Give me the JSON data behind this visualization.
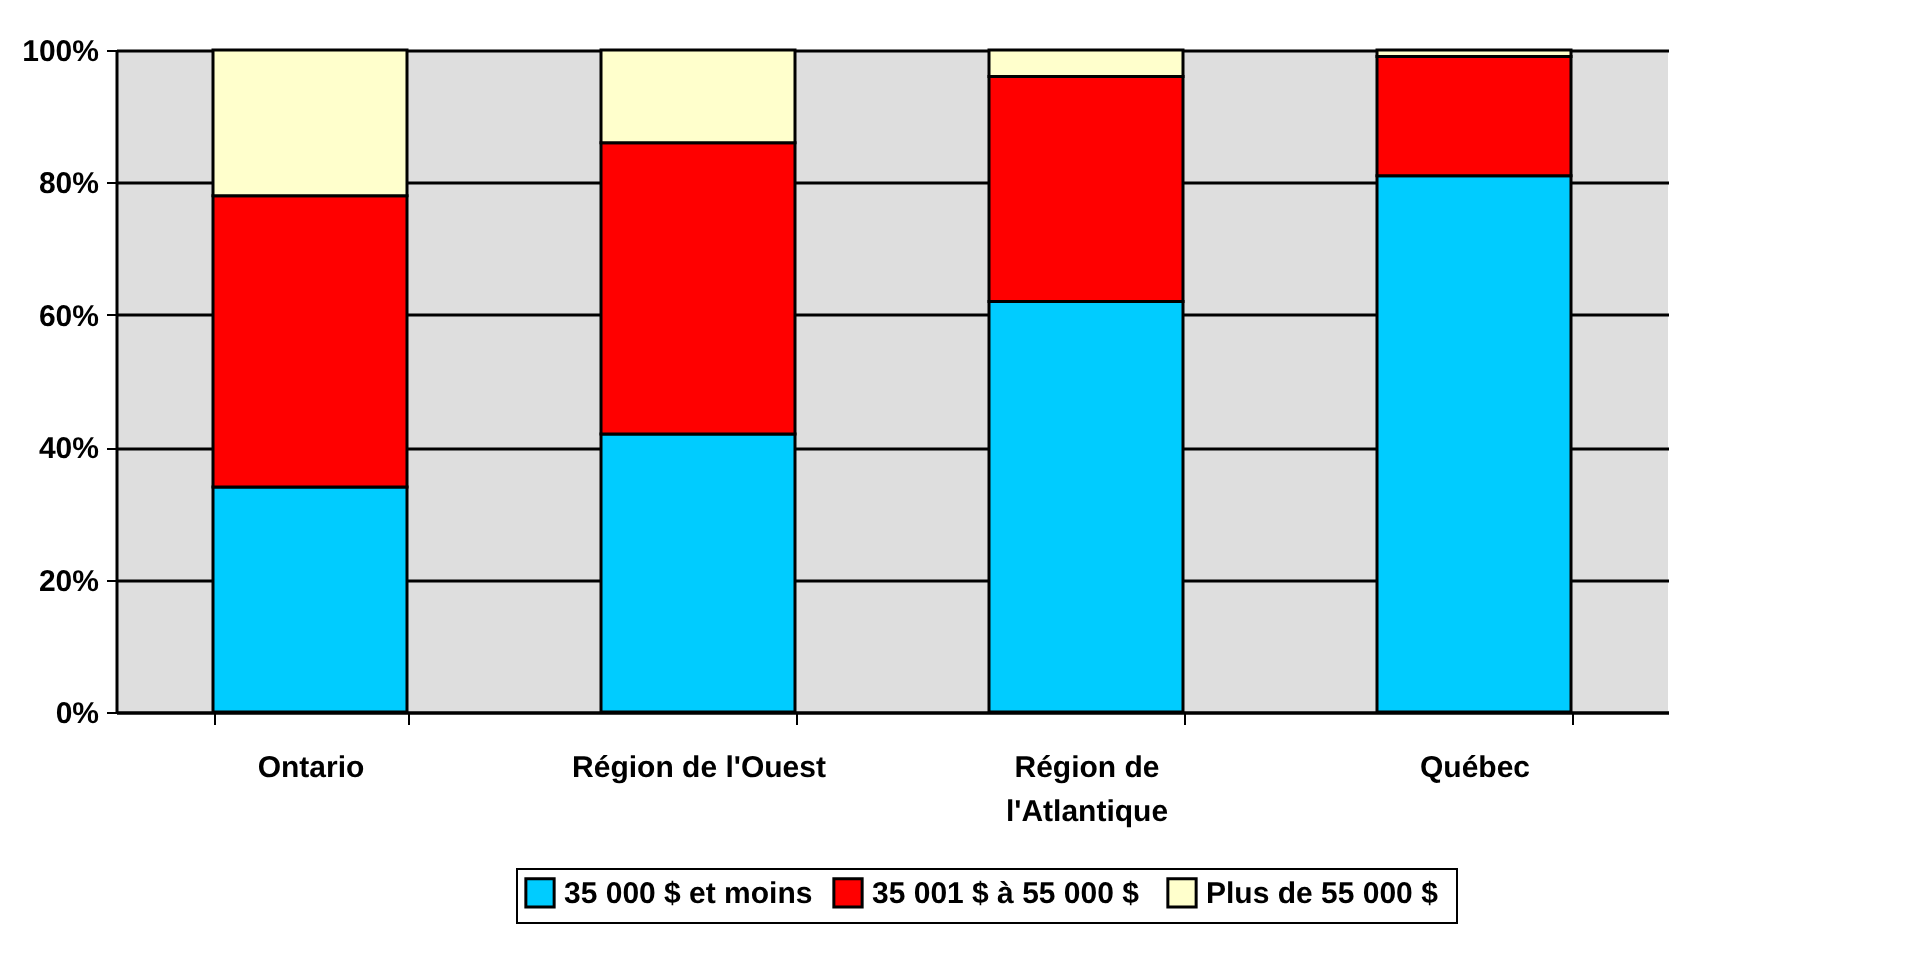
{
  "chart_data": {
    "type": "bar",
    "stacked": true,
    "categories": [
      "Ontario",
      "Région de l'Ouest",
      "Région de l'Atlantique",
      "Québec"
    ],
    "series": [
      {
        "name": "35 000 $ et moins",
        "color": "#00ccff",
        "values": [
          34,
          42,
          62,
          81
        ]
      },
      {
        "name": "35 001 $ à 55 000  $",
        "color": "#ff0000",
        "values": [
          44,
          44,
          34,
          18
        ]
      },
      {
        "name": "Plus de 55 000  $",
        "color": "#ffffcc",
        "values": [
          22,
          14,
          4,
          1
        ]
      }
    ],
    "ylim": [
      0,
      100
    ],
    "yticks": [
      {
        "value": 0,
        "label": "0%"
      },
      {
        "value": 20,
        "label": "20%"
      },
      {
        "value": 40,
        "label": "40%"
      },
      {
        "value": 60,
        "label": "60%"
      },
      {
        "value": 80,
        "label": "80%"
      },
      {
        "value": 100,
        "label": "100%"
      }
    ],
    "grid": "y",
    "legend": "bottom"
  }
}
